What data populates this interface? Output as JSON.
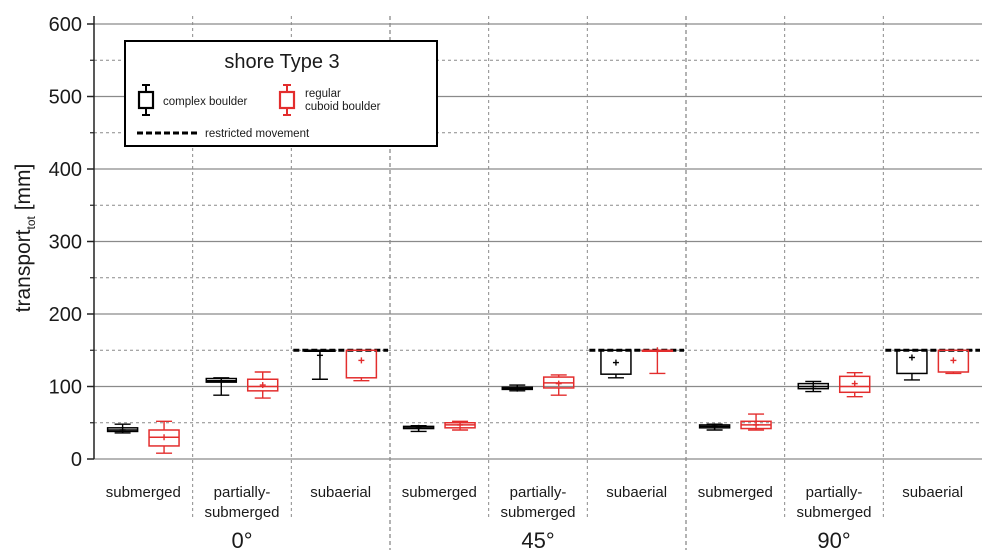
{
  "chart_data": {
    "type": "box",
    "ylabel": "transport",
    "ylabel_sub": "tot",
    "ylabel_unit": " [mm]",
    "ylim": [
      0,
      600
    ],
    "yticks": [
      "0",
      "100",
      "200",
      "300",
      "400",
      "500",
      "600"
    ],
    "grid": "solid major lines every 100, dotted minor lines every 50; dotted vertical separators between categories, dashed between angle groups",
    "groups": [
      "0°",
      "45°",
      "90°"
    ],
    "categories": [
      "submerged",
      "partially-\nsubmerged",
      "subaerial"
    ],
    "restricted_movement_level": 150,
    "legend": {
      "title": "shore Type 3",
      "complex_label": "complex boulder",
      "regular_label": "regular\ncuboid boulder",
      "restricted_label": "restricted movement",
      "position": "top-left"
    },
    "series": [
      {
        "name": "complex boulder",
        "color": "#000000",
        "boxes": [
          {
            "group": "0°",
            "category": "submerged",
            "min": 36,
            "q1": 38,
            "median": 40,
            "q3": 43,
            "max": 48,
            "mean": 40
          },
          {
            "group": "0°",
            "category": "partially-submerged",
            "min": 88,
            "q1": 106,
            "median": 108,
            "q3": 111,
            "max": 112,
            "mean": 108
          },
          {
            "group": "0°",
            "category": "subaerial",
            "min": 110,
            "q1": 150,
            "median": 150,
            "q3": 150,
            "max": 150,
            "mean": 143
          },
          {
            "group": "45°",
            "category": "submerged",
            "min": 38,
            "q1": 42,
            "median": 43,
            "q3": 45,
            "max": 46,
            "mean": 43
          },
          {
            "group": "45°",
            "category": "partially-submerged",
            "min": 94,
            "q1": 96,
            "median": 97,
            "q3": 99,
            "max": 102,
            "mean": 97
          },
          {
            "group": "45°",
            "category": "subaerial",
            "min": 112,
            "q1": 117,
            "median": 150,
            "q3": 150,
            "max": 150,
            "mean": 133
          },
          {
            "group": "90°",
            "category": "submerged",
            "min": 40,
            "q1": 43,
            "median": 45,
            "q3": 47,
            "max": 48,
            "mean": 45
          },
          {
            "group": "90°",
            "category": "partially-submerged",
            "min": 93,
            "q1": 97,
            "median": 100,
            "q3": 104,
            "max": 107,
            "mean": 100
          },
          {
            "group": "90°",
            "category": "subaerial",
            "min": 109,
            "q1": 118,
            "median": 150,
            "q3": 150,
            "max": 150,
            "mean": 140
          }
        ]
      },
      {
        "name": "regular cuboid boulder",
        "color": "#e32d2d",
        "boxes": [
          {
            "group": "0°",
            "category": "submerged",
            "min": 8,
            "q1": 18,
            "median": 30,
            "q3": 40,
            "max": 52,
            "mean": 30
          },
          {
            "group": "0°",
            "category": "partially-submerged",
            "min": 84,
            "q1": 94,
            "median": 100,
            "q3": 110,
            "max": 120,
            "mean": 102
          },
          {
            "group": "0°",
            "category": "subaerial",
            "min": 108,
            "q1": 112,
            "median": 150,
            "q3": 150,
            "max": 150,
            "mean": 136
          },
          {
            "group": "45°",
            "category": "submerged",
            "min": 40,
            "q1": 43,
            "median": 47,
            "q3": 50,
            "max": 52,
            "mean": 47
          },
          {
            "group": "45°",
            "category": "partially-submerged",
            "min": 88,
            "q1": 98,
            "median": 105,
            "q3": 113,
            "max": 116,
            "mean": 104
          },
          {
            "group": "45°",
            "category": "subaerial",
            "min": 118,
            "q1": 150,
            "median": 150,
            "q3": 150,
            "max": 150,
            "mean": 150
          },
          {
            "group": "90°",
            "category": "submerged",
            "min": 40,
            "q1": 42,
            "median": 47,
            "q3": 52,
            "max": 62,
            "mean": 47
          },
          {
            "group": "90°",
            "category": "partially-submerged",
            "min": 86,
            "q1": 92,
            "median": 100,
            "q3": 114,
            "max": 119,
            "mean": 104
          },
          {
            "group": "90°",
            "category": "subaerial",
            "min": 118,
            "q1": 120,
            "median": 150,
            "q3": 150,
            "max": 150,
            "mean": 136
          }
        ]
      }
    ]
  }
}
